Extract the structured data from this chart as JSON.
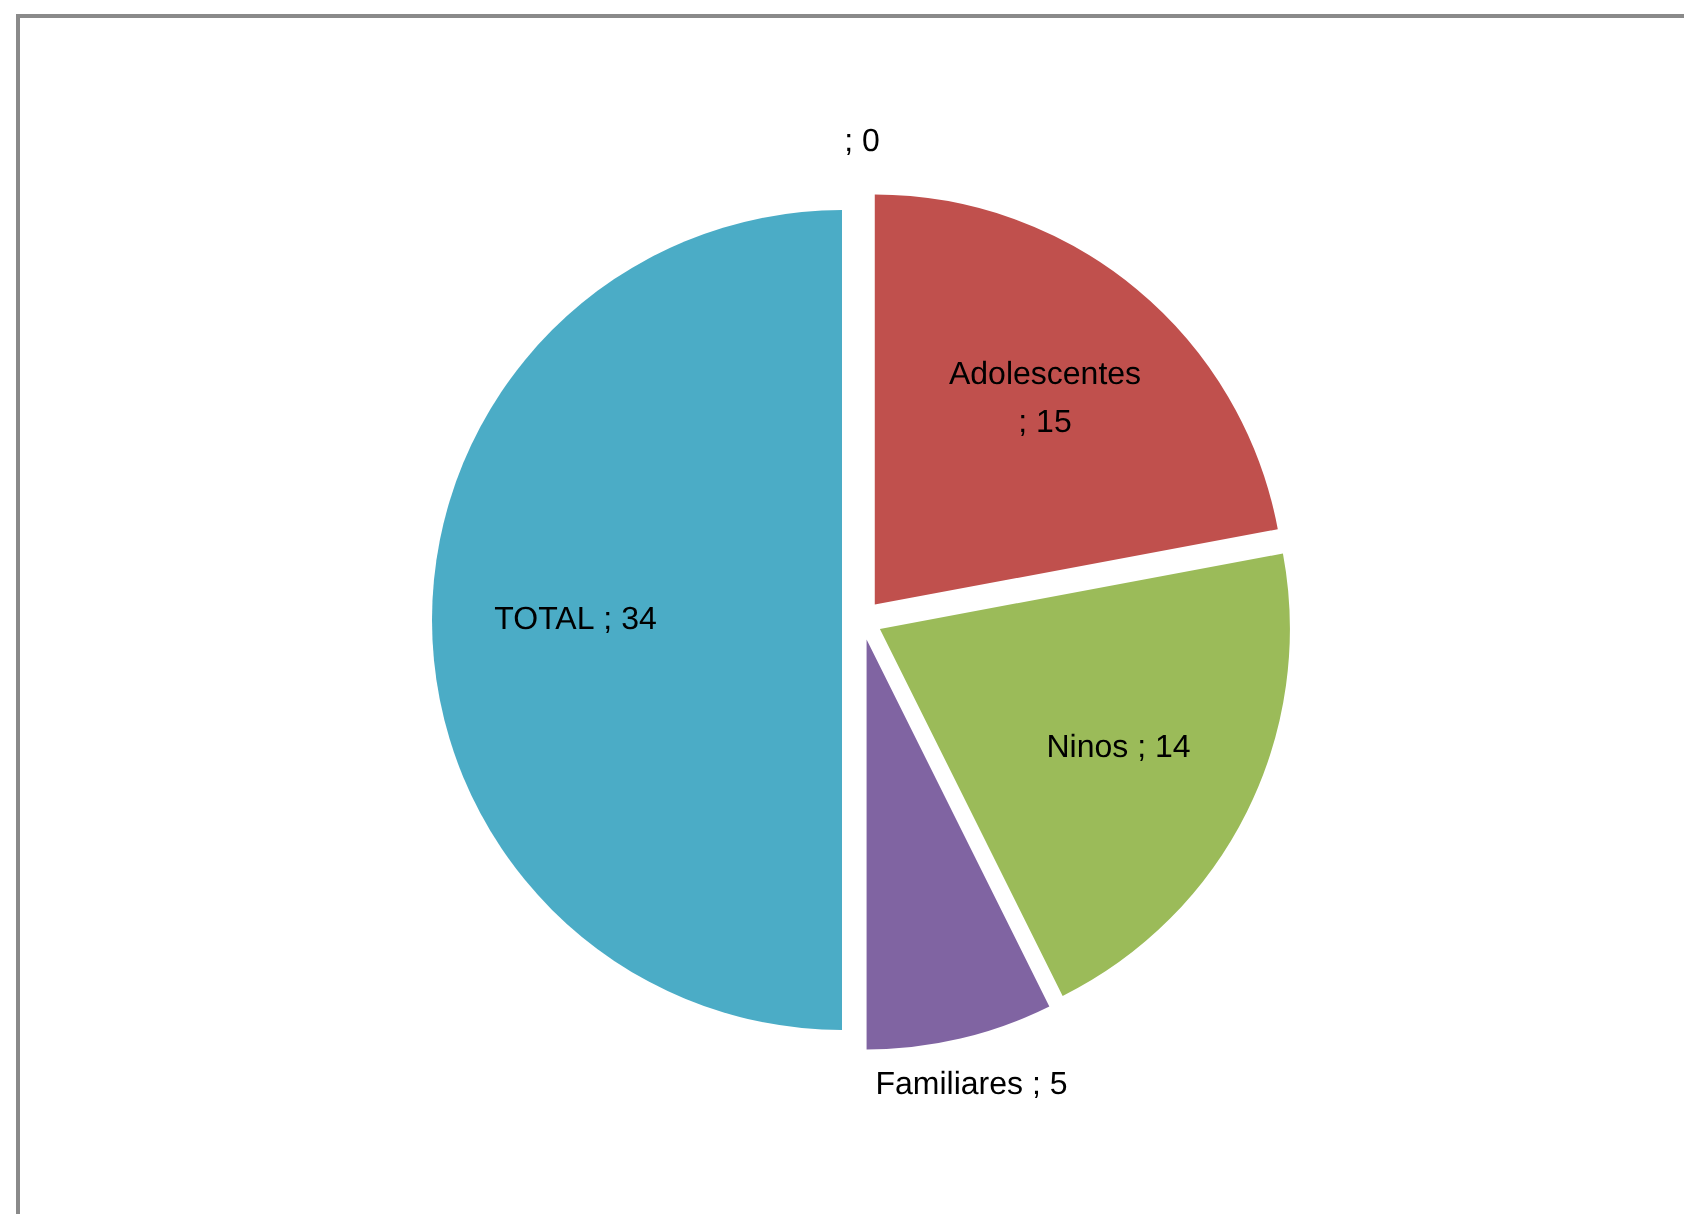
{
  "chart_data": {
    "type": "pie",
    "categories": [
      null,
      "Adolescentes",
      "Ninos",
      "Familiares",
      "TOTAL"
    ],
    "values": [
      0,
      15,
      14,
      5,
      34
    ],
    "colors": [
      "#4f81bd",
      "#c0504d",
      "#9bbb59",
      "#8064a2",
      "#4bacc6"
    ],
    "value_labels": [
      "; 0",
      "; 15",
      "; 14",
      "; 5",
      "; 34"
    ]
  }
}
